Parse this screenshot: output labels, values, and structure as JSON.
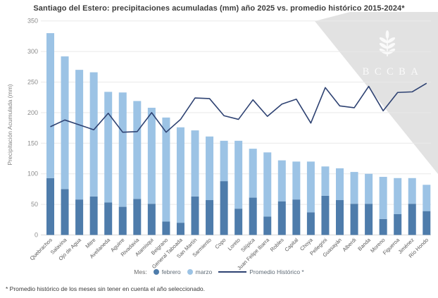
{
  "title": "Santiago del Estero: precipitaciones acumuladas (mm) año 2025 vs. promedio histórico 2015-2024*",
  "watermark": {
    "text": "BCCBA"
  },
  "legend": {
    "prefix": "Mes:",
    "febrero_label": "febrero",
    "marzo_label": "marzo",
    "promedio_label": "Promedio Histórico *"
  },
  "footnote": "* Promedio histórico de los meses sin tener en cuenta el año seleccionado.",
  "colors": {
    "febrero": "#4e7cab",
    "marzo": "#9cc3e5",
    "promedio": "#2e4272",
    "grid": "#e9e9e9",
    "axis_line": "#d6d6d6",
    "tick_text": "#8c8c8c",
    "xlabel_text": "#595959",
    "watermark_bg": "#e2e2e2",
    "watermark_fg": "#fafafa"
  },
  "chart_data": {
    "type": "bar",
    "stacked": true,
    "title": "Santiago del Estero: precipitaciones acumuladas (mm) año 2025 vs. promedio histórico 2015-2024*",
    "xlabel": "",
    "ylabel": "Precipitación Acumulada (mm)",
    "ylim": [
      0,
      350
    ],
    "yticks": [
      0,
      50,
      100,
      150,
      200,
      250,
      300,
      350
    ],
    "grid": true,
    "legend_position": "bottom",
    "categories": [
      "Quebrachos",
      "Salavina",
      "Ojo de Agua",
      "Mitre",
      "Avellaneda",
      "Aguirre",
      "Rivadavia",
      "Atamisqui",
      "Belgrano",
      "General Taboada",
      "San Martín",
      "Sarmiento",
      "Copo",
      "Loreto",
      "Silípica",
      "Juan Felipe Ibarra",
      "Robles",
      "Capital",
      "Choya",
      "Pellegrini",
      "Guasayán",
      "Alberdi",
      "Banda",
      "Moreno",
      "Figueroa",
      "Jiménez",
      "Río Hondo"
    ],
    "series": [
      {
        "name": "febrero",
        "type": "bar",
        "values": [
          93,
          75,
          58,
          63,
          53,
          46,
          59,
          51,
          22,
          20,
          63,
          57,
          88,
          43,
          61,
          30,
          55,
          58,
          37,
          64,
          57,
          51,
          51,
          26,
          34,
          51,
          39
        ]
      },
      {
        "name": "marzo",
        "type": "bar",
        "values": [
          237,
          217,
          212,
          203,
          181,
          187,
          160,
          157,
          170,
          156,
          108,
          104,
          66,
          111,
          80,
          105,
          67,
          62,
          83,
          48,
          52,
          52,
          49,
          69,
          59,
          42,
          43
        ]
      },
      {
        "name": "Promedio Histórico *",
        "type": "line",
        "values": [
          177,
          188,
          180,
          172,
          199,
          168,
          169,
          200,
          168,
          189,
          224,
          223,
          195,
          189,
          221,
          194,
          214,
          222,
          183,
          241,
          211,
          208,
          243,
          203,
          233,
          234,
          248
        ]
      }
    ]
  }
}
